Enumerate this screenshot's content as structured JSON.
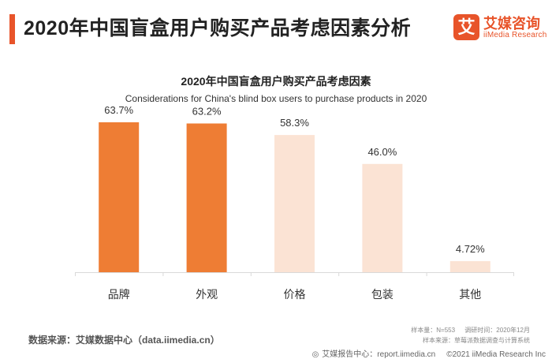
{
  "header": {
    "title": "2020年中国盲盒用户购买产品考虑因素分析",
    "accent_color": "#e8542a"
  },
  "logo": {
    "mark": "艾",
    "name": "艾媒咨询",
    "sub": "iiMedia Research",
    "color": "#e8542a"
  },
  "chart_data": {
    "type": "bar",
    "title": "2020年中国盲盒用户购买产品考虑因素",
    "subtitle": "Considerations for China's blind box users to purchase products in 2020",
    "categories": [
      "品牌",
      "外观",
      "价格",
      "包装",
      "其他"
    ],
    "values": [
      63.7,
      63.2,
      58.3,
      46.0,
      4.72
    ],
    "value_labels": [
      "63.7%",
      "63.2%",
      "58.3%",
      "46.0%",
      "4.72%"
    ],
    "ylim": [
      0,
      70
    ],
    "grid": false,
    "colors": [
      "#ee7d34",
      "#ee7d34",
      "#fbe3d4",
      "#fbe3d4",
      "#fbe3d4"
    ]
  },
  "footer": {
    "source": "数据来源：艾媒数据中心（data.iimedia.cn）",
    "sample_size": "样本量：N=553",
    "survey_time": "调研时间：2020年12月",
    "sample_source": "样本来源：草莓派数据调查与计算系统",
    "report_center": "艾媒报告中心：report.iimedia.cn",
    "copyright": "©2021 iiMedia Research Inc"
  }
}
